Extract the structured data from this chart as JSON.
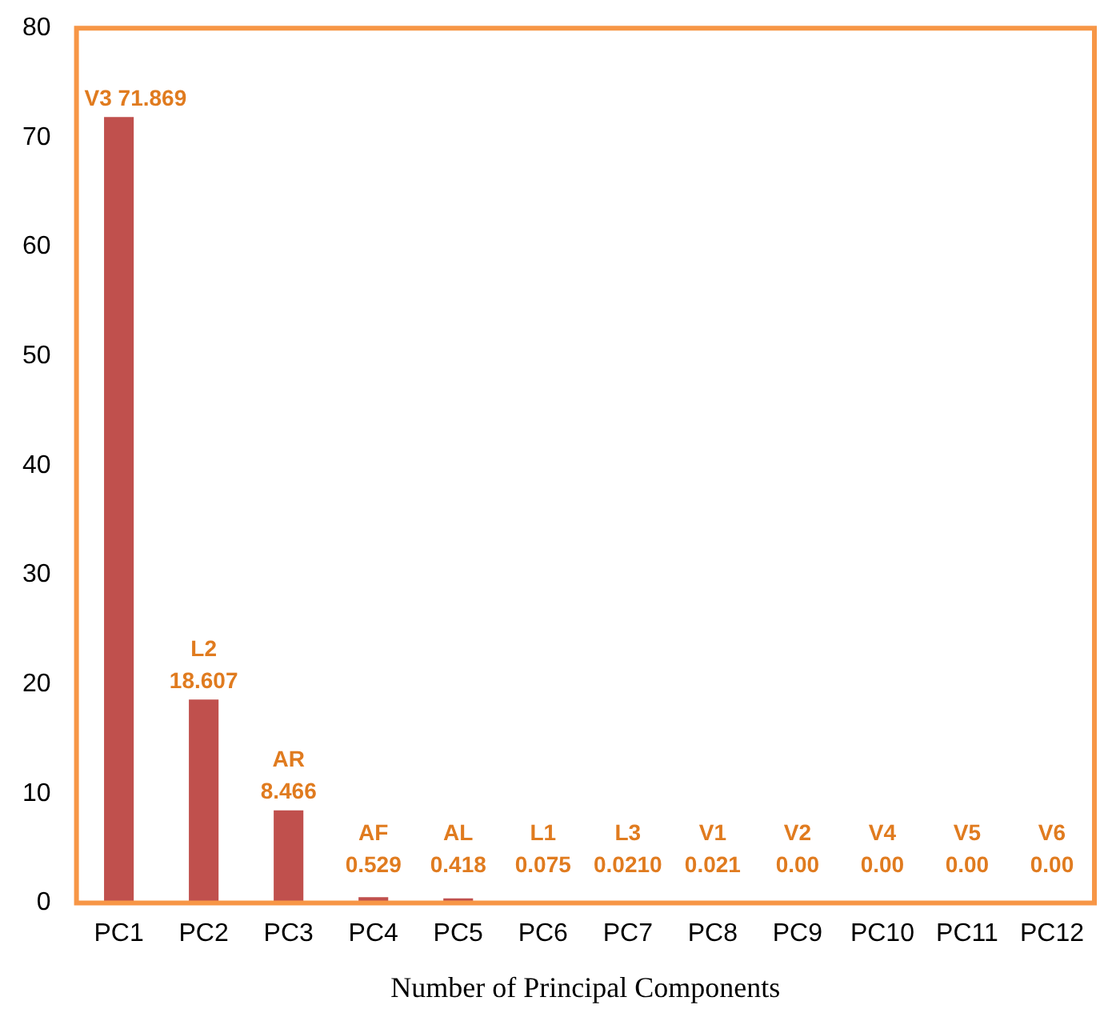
{
  "chart_data": {
    "type": "bar",
    "xlabel": "Number of Principal Components",
    "categories": [
      "PC1",
      "PC2",
      "PC3",
      "PC4",
      "PC5",
      "PC6",
      "PC7",
      "PC8",
      "PC9",
      "PC10",
      "PC11",
      "PC12"
    ],
    "values": [
      71.869,
      18.607,
      8.466,
      0.529,
      0.418,
      0.075,
      0.021,
      0.021,
      0,
      0,
      0,
      0
    ],
    "value_labels": [
      "V3 71.869",
      "L2 18.607",
      "AR 8.466",
      "AF 0.529",
      "AL 0.418",
      "L1 0.075",
      "L3 0.0210",
      "V1 0.021",
      "V2 0.00",
      "V4 0.00",
      "V5 0.00",
      "V6 0.00"
    ],
    "color": "#c0504d",
    "ylim": [
      0,
      80
    ],
    "yticks": [
      0,
      10,
      20,
      30,
      40,
      50,
      60,
      70,
      80
    ],
    "grid": false,
    "legend": false
  }
}
